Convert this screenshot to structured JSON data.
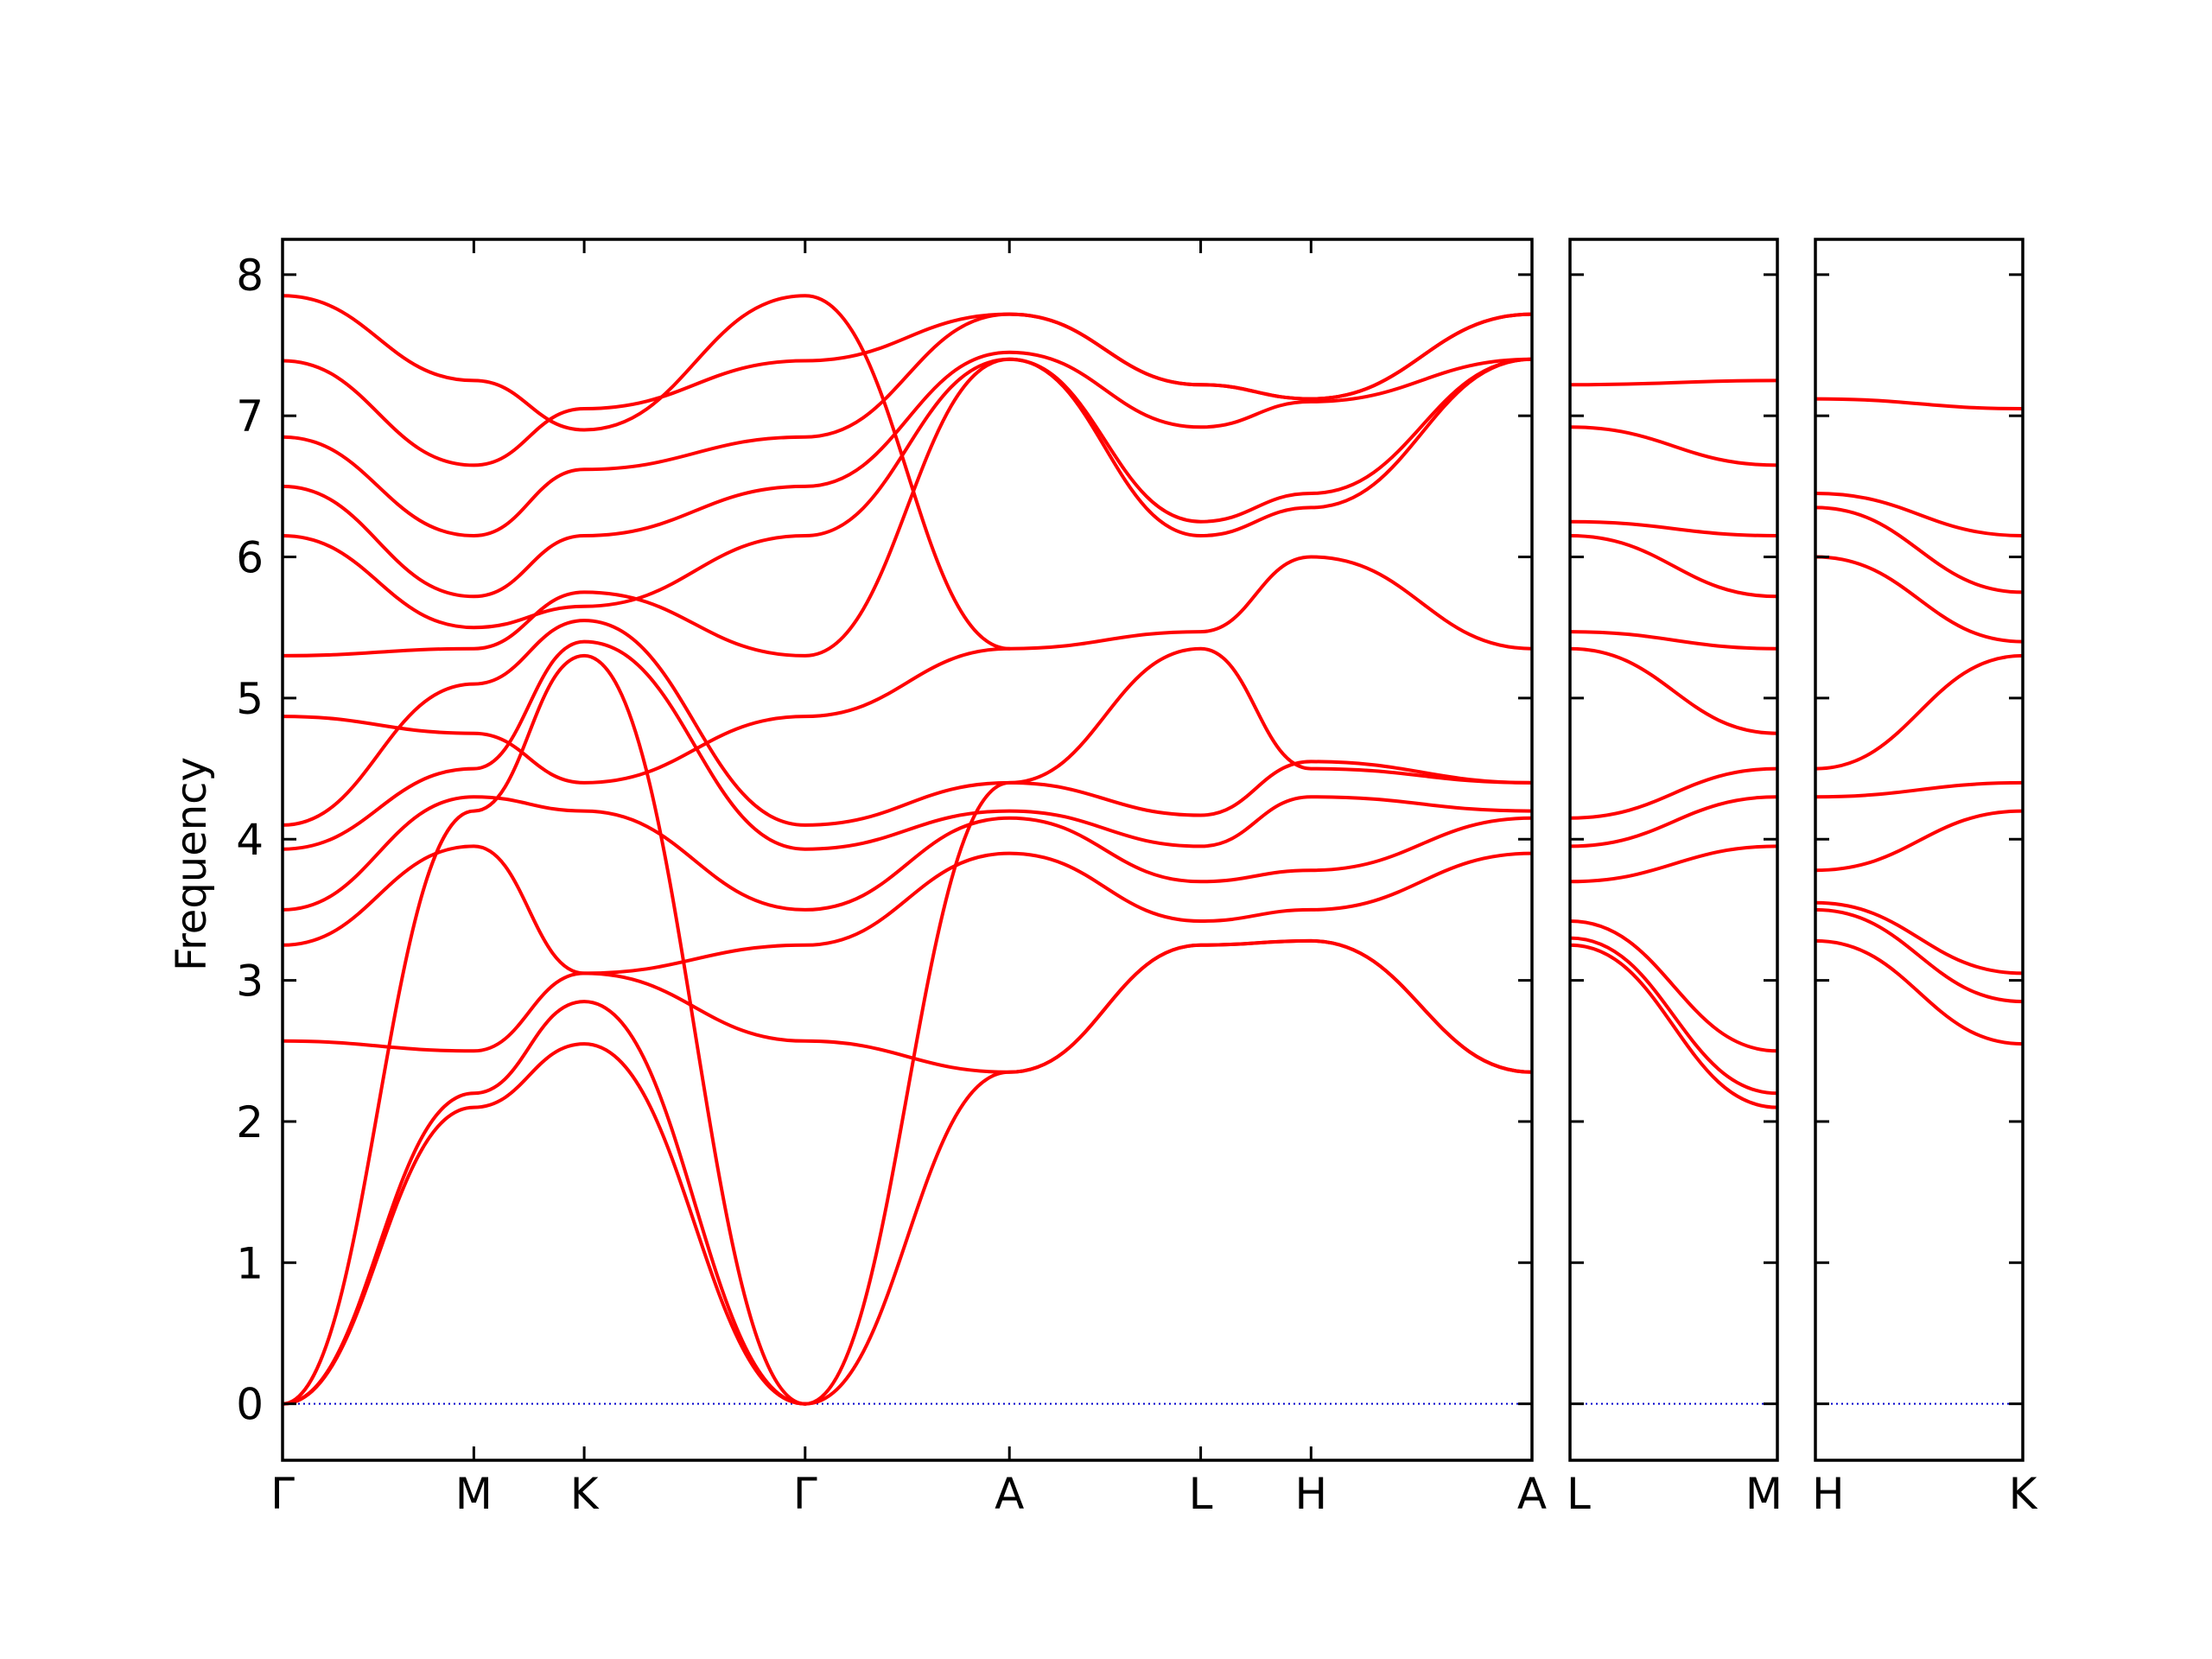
{
  "chart_data": {
    "type": "line",
    "title": "",
    "xlabel": "",
    "ylabel": "Frequency",
    "ylim": [
      -0.4,
      8.25
    ],
    "yticks": [
      0,
      1,
      2,
      3,
      4,
      5,
      6,
      7,
      8
    ],
    "grid": false,
    "colors": {
      "bands": "#ff0000",
      "zero_line": "#0000cc",
      "frame": "#000000"
    },
    "panels": [
      {
        "path": [
          "Γ",
          "M",
          "K",
          "Γ",
          "A",
          "L",
          "H",
          "A"
        ],
        "x": [
          0,
          1,
          1.577,
          2.732,
          3.8,
          4.8,
          5.377,
          6.532
        ],
        "bands": [
          {
            "x": [
              0,
              1,
              1.577,
              2.732
            ],
            "y": [
              0,
              2.1,
              2.55,
              0
            ]
          },
          {
            "x": [
              0,
              1,
              1.577,
              2.732
            ],
            "y": [
              0,
              2.2,
              2.85,
              0
            ]
          },
          {
            "x": [
              0,
              1,
              1.577,
              2.732
            ],
            "y": [
              0,
              4.2,
              5.3,
              0
            ]
          },
          {
            "x": [
              2.732,
              3.8,
              4.8,
              5.377,
              6.532
            ],
            "y": [
              0,
              2.35,
              3.25,
              3.28,
              2.35
            ]
          },
          {
            "x": [
              2.732,
              3.8,
              4.8,
              5.377,
              6.532
            ],
            "y": [
              0,
              4.4,
              5.35,
              4.5,
              4.4
            ]
          },
          {
            "x": [
              0,
              1,
              1.577,
              2.732,
              3.8,
              4.8,
              5.377,
              6.532
            ],
            "y": [
              2.57,
              2.5,
              3.05,
              2.57,
              2.35,
              3.25,
              3.28,
              2.35
            ]
          },
          {
            "x": [
              0,
              1,
              1.577,
              2.732,
              3.8,
              4.8,
              5.377,
              6.532
            ],
            "y": [
              3.25,
              3.95,
              3.05,
              3.25,
              3.9,
              3.42,
              3.5,
              3.9
            ]
          },
          {
            "x": [
              0,
              1,
              1.577,
              2.732,
              3.8,
              4.8,
              5.377,
              6.532
            ],
            "y": [
              3.5,
              4.3,
              4.2,
              3.5,
              4.15,
              3.7,
              3.78,
              4.15
            ]
          },
          {
            "x": [
              0,
              1,
              1.577,
              2.732,
              3.8,
              4.8,
              5.377,
              6.532
            ],
            "y": [
              3.93,
              4.5,
              5.4,
              3.93,
              4.2,
              3.95,
              4.3,
              4.2
            ]
          },
          {
            "x": [
              0,
              1,
              1.577,
              2.732,
              3.8,
              4.8,
              5.377,
              6.532
            ],
            "y": [
              4.1,
              5.1,
              5.55,
              4.1,
              4.4,
              4.17,
              4.55,
              4.4
            ]
          },
          {
            "x": [
              0,
              1,
              1.577,
              2.732,
              3.8,
              4.8,
              5.377,
              6.532
            ],
            "y": [
              4.87,
              4.75,
              4.4,
              4.87,
              5.35,
              5.47,
              6.0,
              5.35
            ]
          },
          {
            "x": [
              0,
              1,
              1.577,
              2.732,
              3.8,
              4.8,
              5.377,
              6.532
            ],
            "y": [
              5.3,
              5.35,
              5.75,
              5.3,
              7.4,
              6.15,
              6.35,
              7.4
            ]
          },
          {
            "x": [
              0,
              1,
              1.577,
              2.732,
              3.8,
              4.8,
              5.377,
              6.532
            ],
            "y": [
              6.15,
              5.5,
              5.65,
              6.15,
              7.4,
              6.25,
              6.45,
              7.4
            ]
          },
          {
            "x": [
              0,
              1,
              1.577,
              2.732,
              3.8,
              4.8,
              5.377,
              6.532
            ],
            "y": [
              6.5,
              5.72,
              6.15,
              6.5,
              7.45,
              6.92,
              7.1,
              7.4
            ]
          },
          {
            "x": [
              0,
              1,
              1.577,
              2.732,
              3.8,
              4.8,
              5.377,
              6.532
            ],
            "y": [
              6.85,
              6.15,
              6.62,
              6.85,
              7.72,
              7.22,
              7.12,
              7.72
            ]
          },
          {
            "x": [
              0,
              1,
              1.577,
              2.732,
              3.8,
              4.8,
              5.377,
              6.532
            ],
            "y": [
              7.39,
              6.65,
              7.05,
              7.39,
              7.72,
              7.22,
              7.12,
              7.72
            ]
          },
          {
            "x": [
              0,
              1,
              1.577,
              2.732,
              3.8
            ],
            "y": [
              7.85,
              7.25,
              6.9,
              7.85,
              5.35
            ]
          }
        ]
      },
      {
        "path": [
          "L",
          "M"
        ],
        "x": [
          0,
          1
        ],
        "bands": [
          {
            "x": [
              0,
              1
            ],
            "y": [
              3.25,
              2.1
            ]
          },
          {
            "x": [
              0,
              1
            ],
            "y": [
              3.3,
              2.2
            ]
          },
          {
            "x": [
              0,
              1
            ],
            "y": [
              3.42,
              2.5
            ]
          },
          {
            "x": [
              0,
              1
            ],
            "y": [
              3.7,
              3.95
            ]
          },
          {
            "x": [
              0,
              1
            ],
            "y": [
              3.95,
              4.3
            ]
          },
          {
            "x": [
              0,
              1
            ],
            "y": [
              4.15,
              4.5
            ]
          },
          {
            "x": [
              0,
              1
            ],
            "y": [
              5.35,
              4.75
            ]
          },
          {
            "x": [
              0,
              1
            ],
            "y": [
              5.47,
              5.35
            ]
          },
          {
            "x": [
              0,
              1
            ],
            "y": [
              6.15,
              5.72
            ]
          },
          {
            "x": [
              0,
              1
            ],
            "y": [
              6.25,
              6.15
            ]
          },
          {
            "x": [
              0,
              1
            ],
            "y": [
              6.92,
              6.65
            ]
          },
          {
            "x": [
              0,
              1
            ],
            "y": [
              7.22,
              7.25
            ]
          }
        ]
      },
      {
        "path": [
          "H",
          "K"
        ],
        "x": [
          0,
          1
        ],
        "bands": [
          {
            "x": [
              0,
              1
            ],
            "y": [
              3.28,
              2.55
            ]
          },
          {
            "x": [
              0,
              1
            ],
            "y": [
              3.5,
              2.85
            ]
          },
          {
            "x": [
              0,
              1
            ],
            "y": [
              3.55,
              3.05
            ]
          },
          {
            "x": [
              0,
              1
            ],
            "y": [
              3.78,
              4.2
            ]
          },
          {
            "x": [
              0,
              1
            ],
            "y": [
              4.3,
              4.4
            ]
          },
          {
            "x": [
              0,
              1
            ],
            "y": [
              4.5,
              5.3
            ]
          },
          {
            "x": [
              0,
              1
            ],
            "y": [
              6.0,
              5.4
            ]
          },
          {
            "x": [
              0,
              1
            ],
            "y": [
              6.35,
              5.75
            ]
          },
          {
            "x": [
              0,
              1
            ],
            "y": [
              6.45,
              6.15
            ]
          },
          {
            "x": [
              0,
              1
            ],
            "y": [
              7.12,
              7.05
            ]
          }
        ]
      }
    ]
  }
}
